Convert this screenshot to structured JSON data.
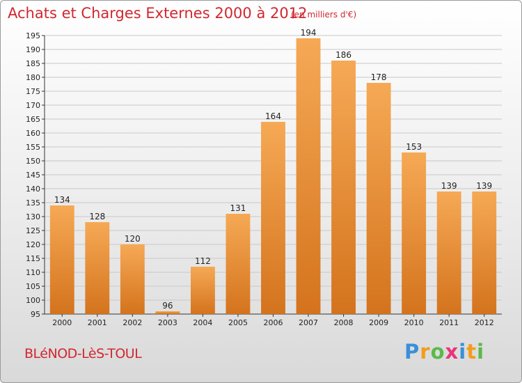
{
  "header": {
    "title": "Achats et Charges Externes 2000 à 2012",
    "unit": "(en milliers d'€)"
  },
  "footer": {
    "commune": "BLéNOD-LèS-TOUL",
    "brand": [
      "P",
      "r",
      "o",
      "x",
      "i",
      "t",
      "i"
    ],
    "brand_colors": [
      "#3a8fd8",
      "#f39c1d",
      "#5bb94a",
      "#e8357a",
      "#3a8fd8",
      "#f39c1d",
      "#5bb94a"
    ]
  },
  "colors": {
    "bar_light": "#f6a955",
    "bar_dark": "#d4731d",
    "axis": "#333333",
    "grid": "#c8c8c8",
    "title": "#d2272f"
  },
  "chart_data": {
    "type": "bar",
    "title": "Achats et Charges Externes 2000 à 2012",
    "subtitle": "(en milliers d'€)",
    "categories": [
      "2000",
      "2001",
      "2002",
      "2003",
      "2004",
      "2005",
      "2006",
      "2007",
      "2008",
      "2009",
      "2010",
      "2011",
      "2012"
    ],
    "values": [
      134,
      128,
      120,
      96,
      112,
      131,
      164,
      194,
      186,
      178,
      153,
      139,
      139
    ],
    "ylim": [
      95,
      195
    ],
    "yticks": [
      95,
      100,
      105,
      110,
      115,
      120,
      125,
      130,
      135,
      140,
      145,
      150,
      155,
      160,
      165,
      170,
      175,
      180,
      185,
      190,
      195
    ],
    "grid": true,
    "legend": "none"
  }
}
